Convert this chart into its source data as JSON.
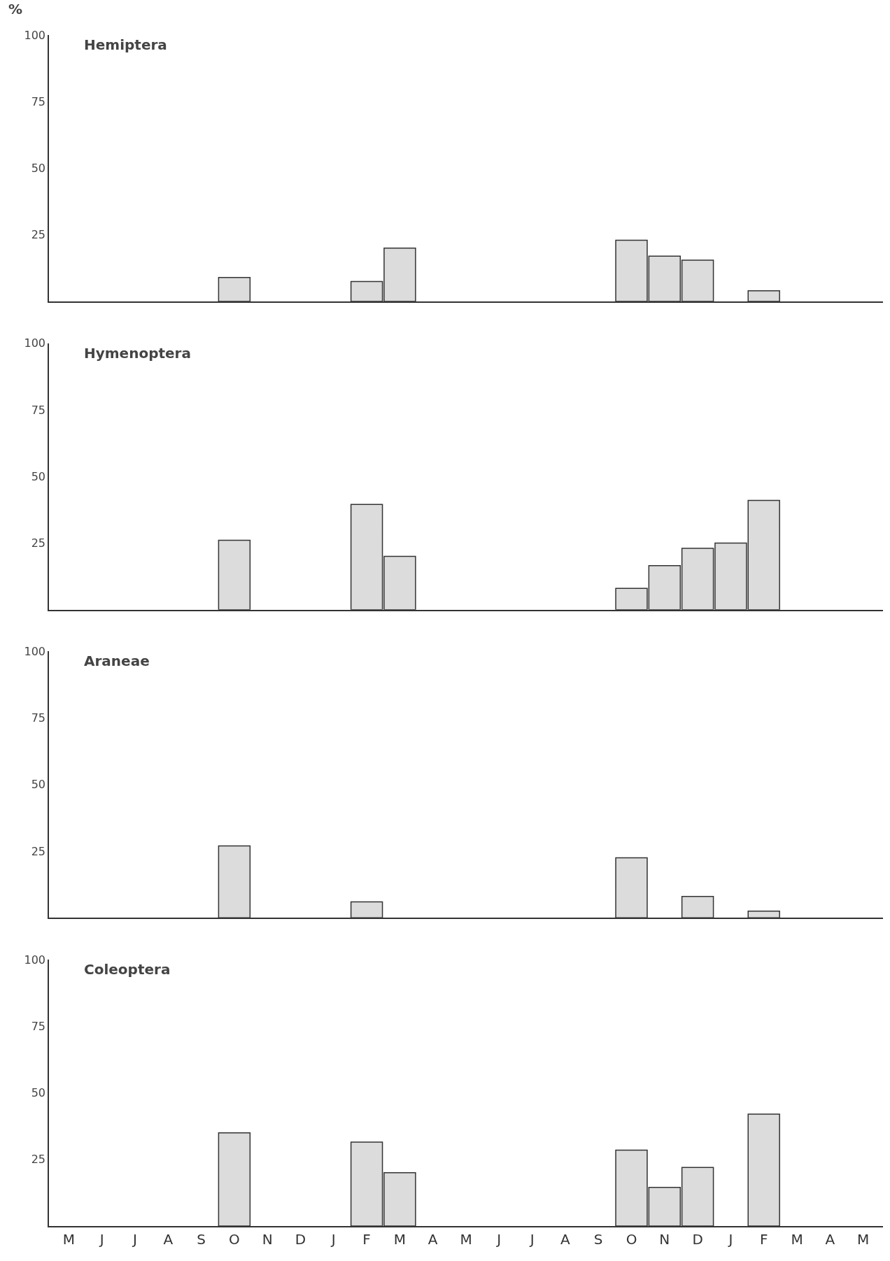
{
  "chart_data": [
    {
      "type": "bar",
      "title": "Hemiptera",
      "ylabel": "%",
      "categories": [
        null,
        null,
        null,
        null,
        null,
        null,
        null,
        null,
        null,
        null,
        null,
        null,
        null,
        null,
        null,
        null,
        null,
        null,
        null,
        null,
        null,
        null,
        null,
        null,
        null
      ],
      "values": [
        null,
        null,
        null,
        null,
        null,
        9,
        null,
        null,
        null,
        7.5,
        20,
        null,
        null,
        null,
        null,
        null,
        null,
        23,
        17,
        15.5,
        null,
        4,
        null,
        null,
        null
      ],
      "color": "#dcdcdc",
      "ylim": [
        0,
        100
      ],
      "yticks": [
        25,
        50,
        75,
        100
      ],
      "tick_labels": "y"
    },
    {
      "type": "bar",
      "title": "Hymenoptera",
      "categories": [
        null,
        null,
        null,
        null,
        null,
        null,
        null,
        null,
        null,
        null,
        null,
        null,
        null,
        null,
        null,
        null,
        null,
        null,
        null,
        null,
        null,
        null,
        null,
        null,
        null
      ],
      "values": [
        null,
        null,
        null,
        null,
        null,
        26,
        null,
        null,
        null,
        39.5,
        20,
        null,
        null,
        null,
        null,
        null,
        null,
        8,
        16.5,
        23,
        25,
        41,
        null,
        null,
        null
      ],
      "color": "#dcdcdc",
      "ylim": [
        0,
        100
      ],
      "yticks": [
        25,
        50,
        75,
        100
      ],
      "tick_labels": "y"
    },
    {
      "type": "bar",
      "title": "Araneae",
      "categories": [
        null,
        null,
        null,
        null,
        null,
        null,
        null,
        null,
        null,
        null,
        null,
        null,
        null,
        null,
        null,
        null,
        null,
        null,
        null,
        null,
        null,
        null,
        null,
        null,
        null
      ],
      "values": [
        null,
        null,
        null,
        null,
        null,
        27,
        null,
        null,
        null,
        6,
        null,
        null,
        null,
        null,
        null,
        null,
        null,
        22.5,
        null,
        8,
        null,
        2.5,
        null,
        null,
        null
      ],
      "color": "#dcdcdc",
      "ylim": [
        0,
        100
      ],
      "yticks": [
        25,
        50,
        75,
        100
      ],
      "tick_labels": "y"
    },
    {
      "type": "bar",
      "title": "Coleoptera",
      "categories": [
        "M",
        "J",
        "J",
        "A",
        "S",
        "O",
        "N",
        "D",
        "J",
        "F",
        "M",
        "A",
        "M",
        "J",
        "J",
        "A",
        "S",
        "O",
        "N",
        "D",
        "J",
        "F",
        "M",
        "A",
        "M"
      ],
      "values": [
        null,
        null,
        null,
        null,
        null,
        35,
        null,
        null,
        null,
        31.5,
        20,
        null,
        null,
        null,
        null,
        null,
        null,
        28.5,
        14.5,
        22,
        null,
        42,
        null,
        null,
        null
      ],
      "color": "#dcdcdc",
      "ylim": [
        0,
        100
      ],
      "yticks": [
        25,
        50,
        75,
        100
      ]
    }
  ]
}
